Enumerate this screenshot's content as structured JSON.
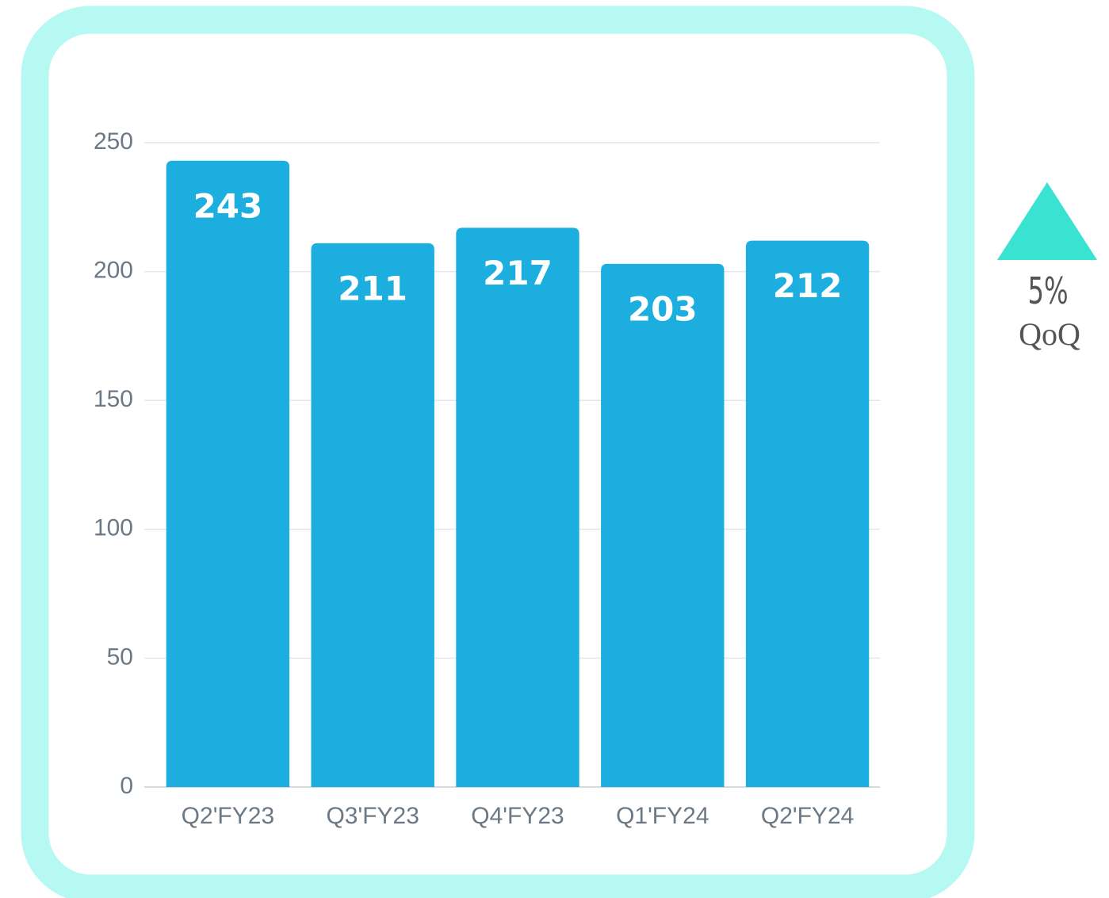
{
  "chart_data": {
    "type": "bar",
    "categories": [
      "Q2'FY23",
      "Q3'FY23",
      "Q4'FY23",
      "Q1'FY24",
      "Q2'FY24"
    ],
    "values": [
      243,
      211,
      217,
      203,
      212
    ],
    "color": "#1daee0",
    "ylim": [
      0,
      250
    ],
    "yticks": [
      0,
      50,
      100,
      150,
      200,
      250
    ],
    "grid": true,
    "annotations": [
      "5%",
      "QoQ"
    ]
  }
}
